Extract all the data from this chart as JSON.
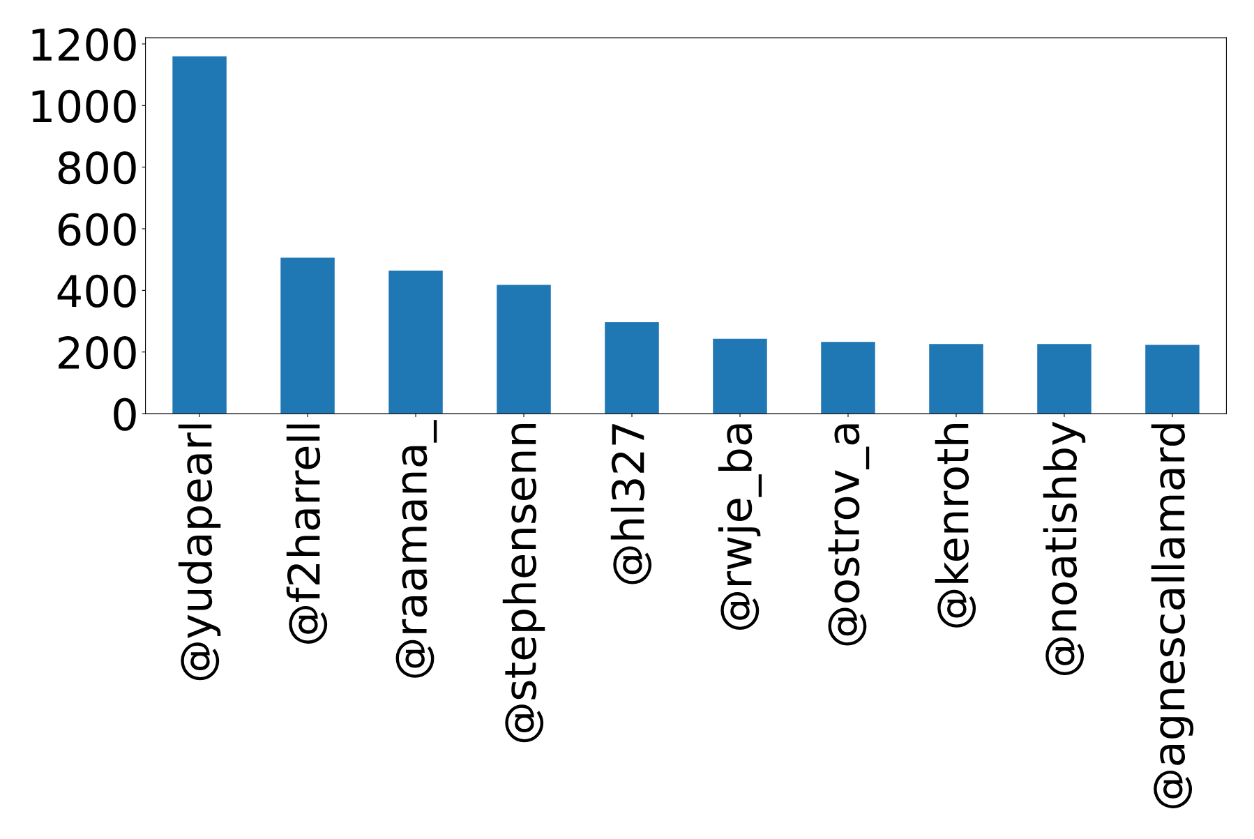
{
  "chart_data": {
    "type": "bar",
    "categories": [
      "@yudapearl",
      "@f2harrell",
      "@raamana_",
      "@stephensenn",
      "@hl327",
      "@rwje_ba",
      "@ostrov_a",
      "@kenroth",
      "@noatishby",
      "@agnescallamard"
    ],
    "values": [
      1160,
      506,
      464,
      418,
      297,
      243,
      233,
      226,
      226,
      223
    ],
    "color": "#1f77b4",
    "ylim": [
      0,
      1220
    ],
    "yticks": [
      0,
      200,
      400,
      600,
      800,
      1000,
      1200
    ],
    "grid": false,
    "legend": false
  }
}
